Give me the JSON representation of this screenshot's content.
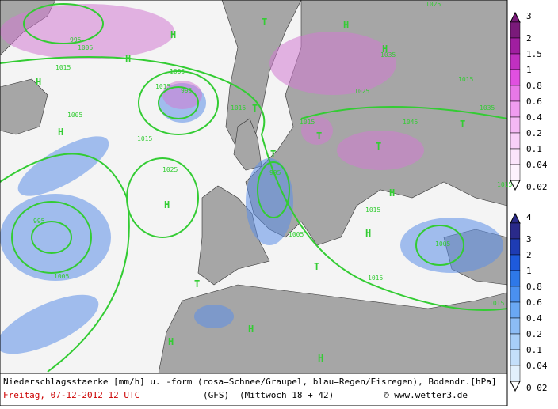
{
  "caption": {
    "description": "Niederschlagsstaerke [mm/h] u. -form (rosa=Schnee/Graupel, blau=Regen/Eisregen), Bodendr.[hPa]",
    "date": "Freitag, 07-12-2012  12 UTC",
    "model": "(GFS)",
    "run": "(Mittwoch 18 + 42)",
    "credit": "© www.wetter3.de"
  },
  "legend_snow": {
    "labels": [
      "3",
      "2",
      "1.5",
      "1",
      "0.8",
      "0.6",
      "0.4",
      "0.2",
      "0.1",
      "0.04",
      "0.02"
    ]
  },
  "legend_rain": {
    "labels": [
      "4",
      "3",
      "2",
      "1",
      "0.8",
      "0.6",
      "0.4",
      "0.2",
      "0.1",
      "0.04",
      "0 02"
    ]
  },
  "isobar_labels": [
    "995",
    "1005",
    "1015",
    "1025",
    "1035",
    "1005",
    "1015",
    "995",
    "1015",
    "1005",
    "1015",
    "1025",
    "995",
    "1005",
    "1015",
    "1045",
    "1035",
    "1025",
    "1015",
    "1015",
    "1015",
    "995",
    "1005",
    "1015",
    "1005",
    "1015"
  ],
  "centers": [
    "H",
    "T",
    "H",
    "H",
    "H",
    "H",
    "T",
    "T",
    "H",
    "T",
    "H",
    "H",
    "T",
    "H",
    "T",
    "T",
    "H",
    "H",
    "H",
    "T"
  ]
}
